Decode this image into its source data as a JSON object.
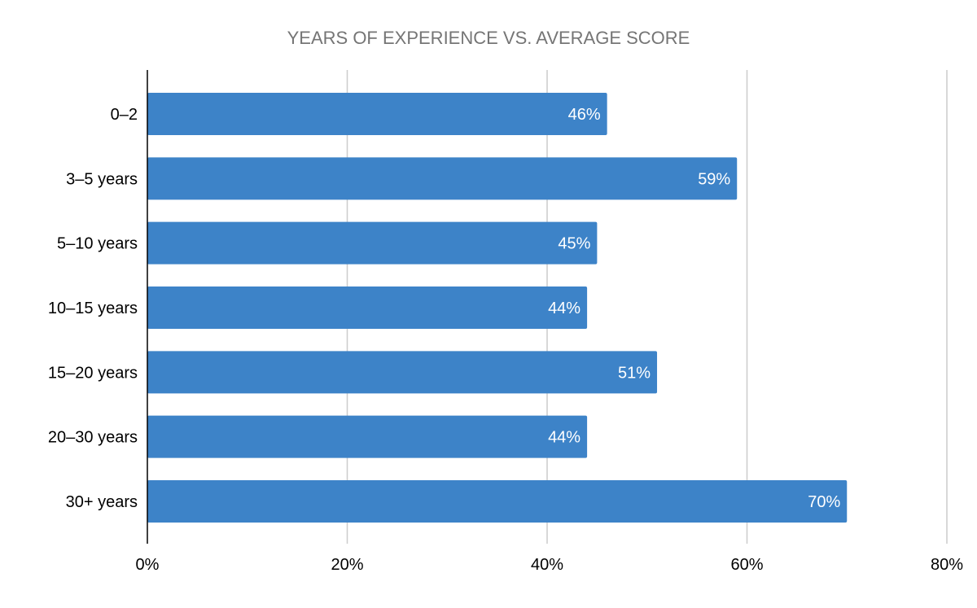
{
  "chart_data": {
    "type": "bar",
    "orientation": "horizontal",
    "title": "YEARS OF EXPERIENCE VS. AVERAGE SCORE",
    "xlabel": "",
    "ylabel": "",
    "categories": [
      "0–2",
      "3–5 years",
      "5–10 years",
      "10–15 years",
      "15–20 years",
      "20–30 years",
      "30+ years"
    ],
    "values": [
      46,
      59,
      45,
      44,
      51,
      44,
      70
    ],
    "data_labels": [
      "46%",
      "59%",
      "45%",
      "44%",
      "51%",
      "44%",
      "70%"
    ],
    "xlim": [
      0,
      80
    ],
    "x_ticks": [
      0,
      20,
      40,
      60,
      80
    ],
    "x_tick_labels": [
      "0%",
      "20%",
      "40%",
      "60%",
      "80%"
    ],
    "grid": true,
    "legend": "none",
    "colors": {
      "bar": "#3d83c8",
      "gridline": "#cccccc",
      "axis": "#000000",
      "title": "#757575",
      "data_label": "#ffffff",
      "tick_label": "#000000"
    }
  }
}
